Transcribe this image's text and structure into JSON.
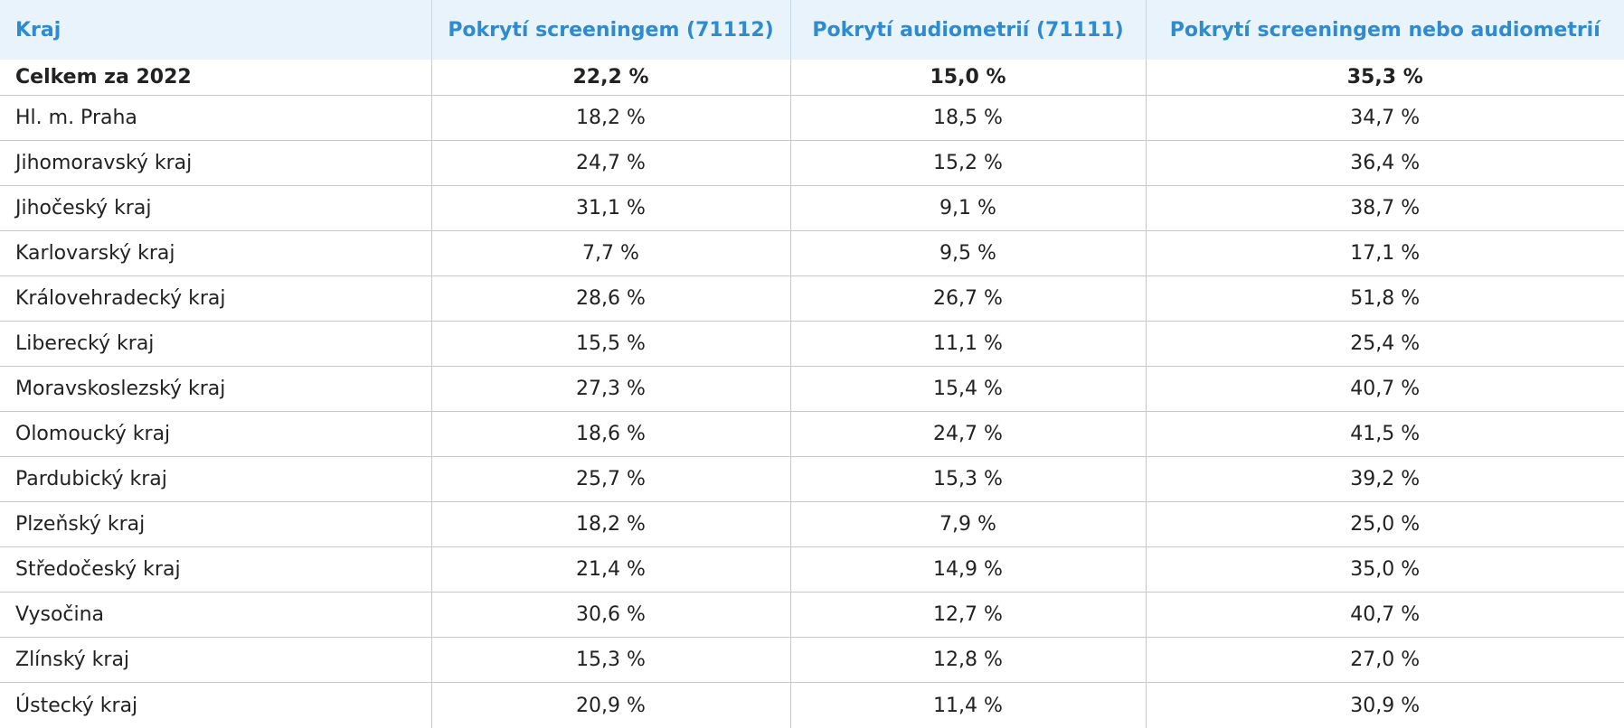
{
  "table": {
    "headers": [
      "Kraj",
      "Pokrytí screeningem (71112)",
      "Pokrytí audiometrií (71111)",
      "Pokrytí screeningem nebo audiometrií"
    ],
    "total": {
      "label": "Celkem za 2022",
      "screening": "22,2 %",
      "audiometry": "15,0 %",
      "either": "35,3 %"
    },
    "rows": [
      {
        "region": "Hl. m. Praha",
        "screening": "18,2 %",
        "audiometry": "18,5 %",
        "either": "34,7 %"
      },
      {
        "region": "Jihomoravský kraj",
        "screening": "24,7 %",
        "audiometry": "15,2 %",
        "either": "36,4 %"
      },
      {
        "region": "Jihočeský kraj",
        "screening": "31,1 %",
        "audiometry": "9,1 %",
        "either": "38,7 %"
      },
      {
        "region": "Karlovarský kraj",
        "screening": "7,7 %",
        "audiometry": "9,5 %",
        "either": "17,1 %"
      },
      {
        "region": "Královehradecký kraj",
        "screening": "28,6 %",
        "audiometry": "26,7 %",
        "either": "51,8 %"
      },
      {
        "region": "Liberecký kraj",
        "screening": "15,5 %",
        "audiometry": "11,1 %",
        "either": "25,4 %"
      },
      {
        "region": "Moravskoslezský kraj",
        "screening": "27,3 %",
        "audiometry": "15,4 %",
        "either": "40,7 %"
      },
      {
        "region": "Olomoucký kraj",
        "screening": "18,6 %",
        "audiometry": "24,7 %",
        "either": "41,5 %"
      },
      {
        "region": "Pardubický kraj",
        "screening": "25,7 %",
        "audiometry": "15,3 %",
        "either": "39,2 %"
      },
      {
        "region": "Plzeňský kraj",
        "screening": "18,2 %",
        "audiometry": "7,9 %",
        "either": "25,0 %"
      },
      {
        "region": "Středočeský kraj",
        "screening": "21,4 %",
        "audiometry": "14,9 %",
        "either": "35,0 %"
      },
      {
        "region": "Vysočina",
        "screening": "30,6 %",
        "audiometry": "12,7 %",
        "either": "40,7 %"
      },
      {
        "region": "Zlínský kraj",
        "screening": "15,3 %",
        "audiometry": "12,8 %",
        "either": "27,0 %"
      },
      {
        "region": "Ústecký kraj",
        "screening": "20,9 %",
        "audiometry": "11,4 %",
        "either": "30,9 %"
      }
    ]
  },
  "colors": {
    "header_bg": "#e9f3fb",
    "header_text": "#2e8bd0",
    "grid": "#c8c8c8"
  }
}
